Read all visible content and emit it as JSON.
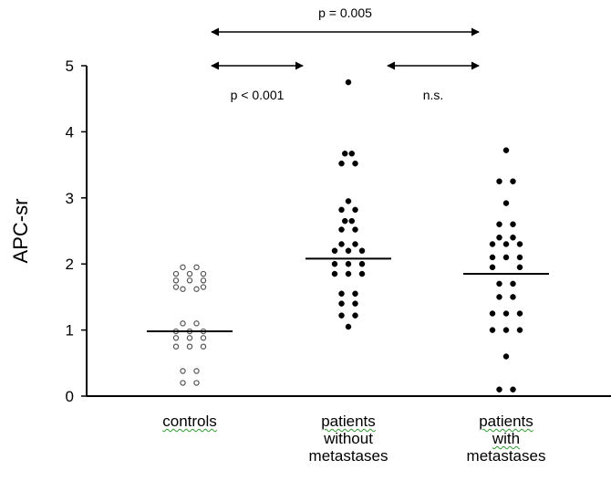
{
  "chart_data": {
    "type": "scatter",
    "ylabel": "APC-sr",
    "ylim": [
      0,
      5
    ],
    "yticks": [
      "0",
      "1",
      "2",
      "3",
      "4",
      "5"
    ],
    "categories": [
      {
        "label_lines": [
          "controls"
        ],
        "spell_marked": [
          true
        ]
      },
      {
        "label_lines": [
          "patients",
          "without",
          "metastases"
        ],
        "spell_marked": [
          true,
          false,
          false
        ]
      },
      {
        "label_lines": [
          "patients",
          "with",
          "metastases"
        ],
        "spell_marked": [
          true,
          true,
          false
        ]
      }
    ],
    "series": [
      {
        "marker": "open-circle",
        "median": 0.98,
        "points": [
          {
            "x": -1,
            "y": 1.95
          },
          {
            "x": 1,
            "y": 1.95
          },
          {
            "x": -2,
            "y": 1.85
          },
          {
            "x": 0,
            "y": 1.85
          },
          {
            "x": 2,
            "y": 1.85
          },
          {
            "x": -2,
            "y": 1.75
          },
          {
            "x": 0,
            "y": 1.75
          },
          {
            "x": 2,
            "y": 1.75
          },
          {
            "x": -2,
            "y": 1.65
          },
          {
            "x": -1,
            "y": 1.62
          },
          {
            "x": 1,
            "y": 1.62
          },
          {
            "x": 2,
            "y": 1.65
          },
          {
            "x": -1,
            "y": 1.1
          },
          {
            "x": 1,
            "y": 1.1
          },
          {
            "x": -2,
            "y": 0.98
          },
          {
            "x": 0,
            "y": 0.98
          },
          {
            "x": 2,
            "y": 0.98
          },
          {
            "x": -2,
            "y": 0.88
          },
          {
            "x": 0,
            "y": 0.88
          },
          {
            "x": 2,
            "y": 0.88
          },
          {
            "x": -2,
            "y": 0.75
          },
          {
            "x": 0,
            "y": 0.75
          },
          {
            "x": 2,
            "y": 0.75
          },
          {
            "x": -1,
            "y": 0.38
          },
          {
            "x": 1,
            "y": 0.38
          },
          {
            "x": -1,
            "y": 0.2
          },
          {
            "x": 1,
            "y": 0.2
          }
        ]
      },
      {
        "marker": "filled-circle",
        "median": 2.08,
        "points": [
          {
            "x": 0,
            "y": 4.75
          },
          {
            "x": -0.5,
            "y": 3.67
          },
          {
            "x": 0.5,
            "y": 3.67
          },
          {
            "x": -1,
            "y": 3.52
          },
          {
            "x": 1,
            "y": 3.52
          },
          {
            "x": 0,
            "y": 2.95
          },
          {
            "x": -1,
            "y": 2.82
          },
          {
            "x": 1,
            "y": 2.82
          },
          {
            "x": -0.5,
            "y": 2.65
          },
          {
            "x": 0.5,
            "y": 2.65
          },
          {
            "x": -1,
            "y": 2.52
          },
          {
            "x": 1,
            "y": 2.52
          },
          {
            "x": -1,
            "y": 2.3
          },
          {
            "x": 1,
            "y": 2.3
          },
          {
            "x": -2,
            "y": 2.2
          },
          {
            "x": 0,
            "y": 2.2
          },
          {
            "x": 2,
            "y": 2.2
          },
          {
            "x": -2,
            "y": 2.0
          },
          {
            "x": 0,
            "y": 2.0
          },
          {
            "x": 2,
            "y": 2.0
          },
          {
            "x": -2,
            "y": 1.85
          },
          {
            "x": 0,
            "y": 1.85
          },
          {
            "x": 2,
            "y": 1.85
          },
          {
            "x": -1,
            "y": 1.55
          },
          {
            "x": 1,
            "y": 1.55
          },
          {
            "x": -1,
            "y": 1.4
          },
          {
            "x": 1,
            "y": 1.4
          },
          {
            "x": -1,
            "y": 1.22
          },
          {
            "x": 1,
            "y": 1.22
          },
          {
            "x": 0,
            "y": 1.05
          }
        ]
      },
      {
        "marker": "filled-circle",
        "median": 1.85,
        "points": [
          {
            "x": 0,
            "y": 3.72
          },
          {
            "x": -1,
            "y": 3.25
          },
          {
            "x": 1,
            "y": 3.25
          },
          {
            "x": 0,
            "y": 2.92
          },
          {
            "x": -1,
            "y": 2.6
          },
          {
            "x": 1,
            "y": 2.6
          },
          {
            "x": -1,
            "y": 2.4
          },
          {
            "x": 1,
            "y": 2.4
          },
          {
            "x": -2,
            "y": 2.3
          },
          {
            "x": 0,
            "y": 2.3
          },
          {
            "x": 2,
            "y": 2.3
          },
          {
            "x": -2,
            "y": 2.1
          },
          {
            "x": 0,
            "y": 2.1
          },
          {
            "x": 2,
            "y": 2.1
          },
          {
            "x": -2,
            "y": 1.95
          },
          {
            "x": 2,
            "y": 1.95
          },
          {
            "x": -1,
            "y": 1.7
          },
          {
            "x": 1,
            "y": 1.7
          },
          {
            "x": -1,
            "y": 1.5
          },
          {
            "x": 1,
            "y": 1.5
          },
          {
            "x": -2,
            "y": 1.25
          },
          {
            "x": 0,
            "y": 1.25
          },
          {
            "x": 2,
            "y": 1.25
          },
          {
            "x": -2,
            "y": 1.0
          },
          {
            "x": 0,
            "y": 1.0
          },
          {
            "x": 2,
            "y": 1.0
          },
          {
            "x": 0,
            "y": 0.6
          },
          {
            "x": -1,
            "y": 0.1
          },
          {
            "x": 1,
            "y": 0.1
          }
        ]
      }
    ],
    "comparisons": [
      {
        "from": 0,
        "to": 2,
        "level": "top",
        "label": "p = 0.005",
        "label_pos": "above"
      },
      {
        "from": 0,
        "to": 1,
        "level": "lower",
        "label": "p < 0.001",
        "label_pos": "below"
      },
      {
        "from": 1,
        "to": 2,
        "level": "lower",
        "label": "n.s.",
        "label_pos": "below"
      }
    ]
  }
}
